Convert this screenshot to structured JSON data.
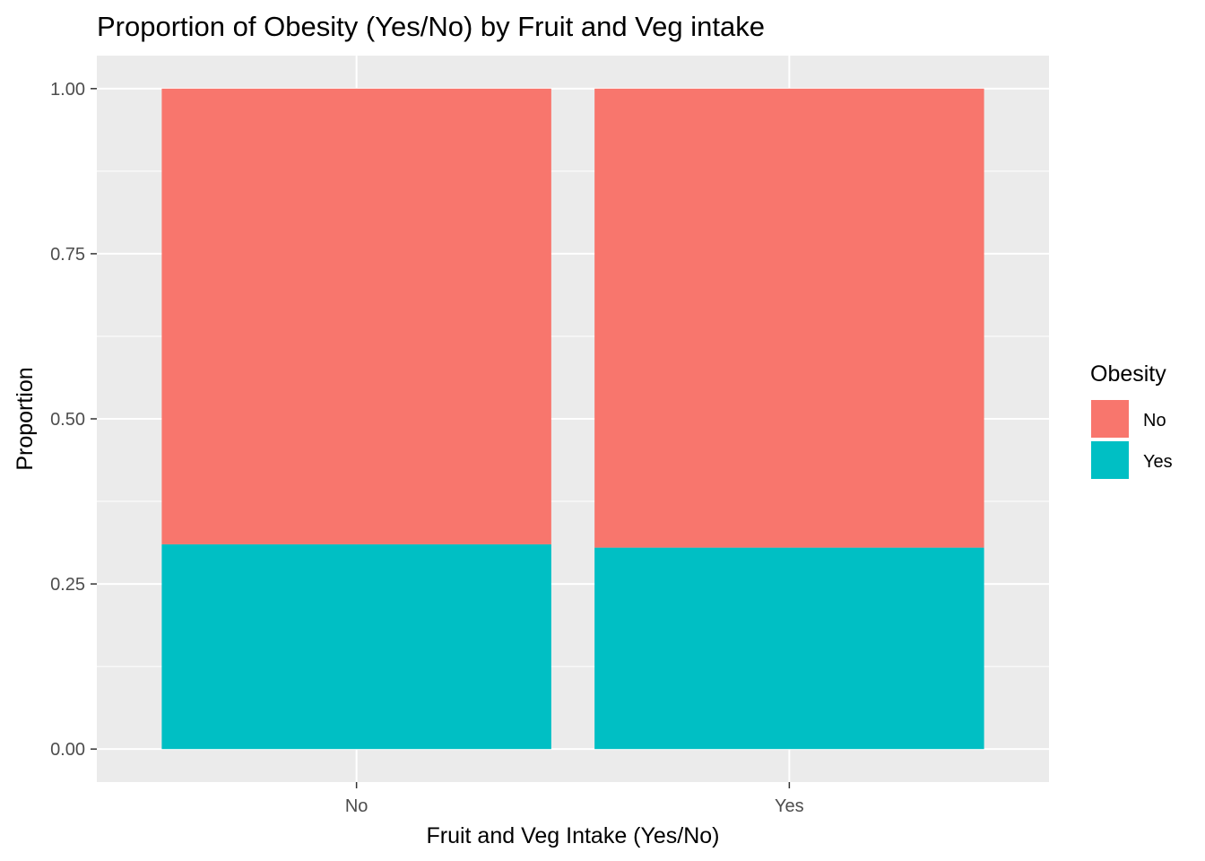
{
  "chart_data": {
    "type": "bar",
    "stacked": true,
    "title": "Proportion of Obesity (Yes/No) by Fruit and Veg intake",
    "xlabel": "Fruit and Veg Intake (Yes/No)",
    "ylabel": "Proportion",
    "categories": [
      "No",
      "Yes"
    ],
    "ylim": [
      -0.05,
      1.05
    ],
    "yticks": [
      "0.00",
      "0.25",
      "0.50",
      "0.75",
      "1.00"
    ],
    "ytick_values": [
      0,
      0.25,
      0.5,
      0.75,
      1.0
    ],
    "grid": true,
    "legend": {
      "title": "Obesity",
      "position": "right",
      "entries": [
        "No",
        "Yes"
      ]
    },
    "series": [
      {
        "name": "Yes",
        "values": [
          0.31,
          0.305
        ],
        "color": "#00BFC4"
      },
      {
        "name": "No",
        "values": [
          0.69,
          0.695
        ],
        "color": "#F8766D"
      }
    ]
  }
}
